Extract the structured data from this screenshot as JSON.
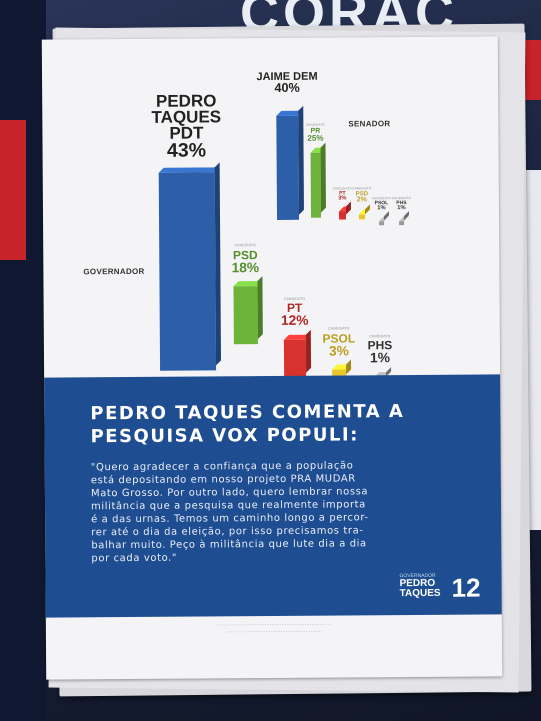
{
  "background": {
    "poster_word": "CORAÇ"
  },
  "flyer": {
    "section_labels": {
      "governor": "GOVERNADOR",
      "senator": "SENADOR"
    },
    "governor_bars": [
      {
        "candidate": "",
        "name": "PEDRO TAQUES PDT",
        "percent": "43%",
        "value": 43,
        "color": "#2d5ea8"
      },
      {
        "candidate": "CANDIDATO",
        "name": "PSD",
        "percent": "18%",
        "value": 18,
        "color": "#6bb33a"
      },
      {
        "candidate": "CANDIDATO",
        "name": "PT",
        "percent": "12%",
        "value": 12,
        "color": "#d8322f"
      },
      {
        "candidate": "CANDIDATO",
        "name": "PSOL",
        "percent": "3%",
        "value": 3,
        "color": "#e8c52a"
      },
      {
        "candidate": "CANDIDATO",
        "name": "PHS",
        "percent": "1%",
        "value": 1,
        "color": "#999999"
      }
    ],
    "senator_bars": [
      {
        "candidate": "",
        "name": "JAIME DEM",
        "percent": "40%",
        "value": 40,
        "color": "#2d5ea8"
      },
      {
        "candidate": "CANDIDATO",
        "name": "PR",
        "percent": "25%",
        "value": 25,
        "color": "#6bb33a"
      },
      {
        "candidate": "CANDIDATO",
        "name": "PT",
        "percent": "3%",
        "value": 3,
        "color": "#d8322f"
      },
      {
        "candidate": "CANDIDATO",
        "name": "PSD",
        "percent": "2%",
        "value": 2,
        "color": "#e8c52a"
      },
      {
        "candidate": "CANDIDATO",
        "name": "PSOL",
        "percent": "1%",
        "value": 1,
        "color": "#999999"
      },
      {
        "candidate": "CANDIDATO",
        "name": "PHS",
        "percent": "1%",
        "value": 1,
        "color": "#999999"
      }
    ],
    "headline": "PEDRO TAQUES COMENTA A PESQUISA VOX POPULI:",
    "quote": "\"Quero agradecer a confiança que a população\nestá depositando em nosso projeto PRA MUDAR\nMato Grosso. Por outro lado, quero lembrar nossa\nmilitância que a pesquisa que realmente importa\né a das urnas. Temos um caminho longo a percor-\nrer até o dia da eleição, por isso precisamos tra-\nbalhar muito. Peço à militância que lute dia a dia\npor cada voto.\"",
    "logo": {
      "small": "GOVERNADOR",
      "name_line1": "PEDRO",
      "name_line2": "TAQUES",
      "number": "12"
    }
  }
}
